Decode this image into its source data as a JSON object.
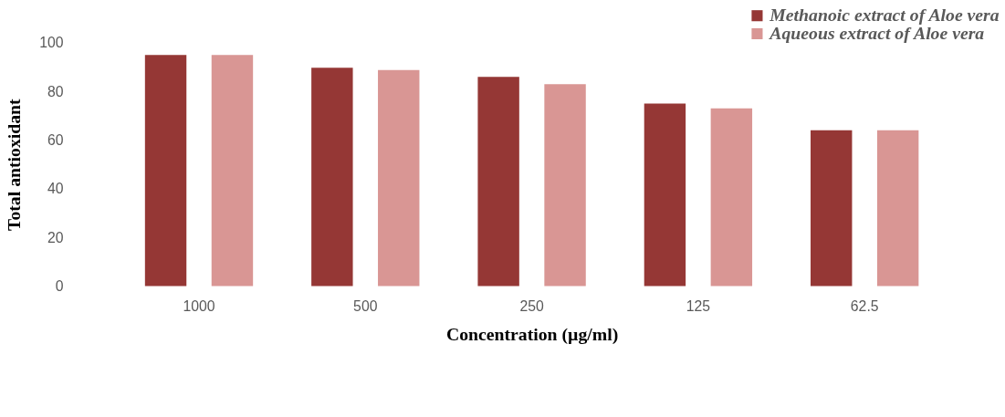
{
  "chart_data": {
    "type": "bar",
    "xlabel": "Concentration (µg/ml)",
    "ylabel": "Total antioxidant",
    "categories": [
      "1000",
      "500",
      "250",
      "125",
      "62.5"
    ],
    "series": [
      {
        "name": "Methanoic extract of Aloe vera",
        "color": "#953735",
        "values": [
          95,
          89.7,
          86,
          75,
          64
        ]
      },
      {
        "name": "Aqueous extract of Aloe vera",
        "color": "#d99694",
        "values": [
          95,
          88.8,
          83,
          73,
          64
        ]
      }
    ],
    "ylim": [
      0,
      100
    ],
    "yticks": [
      0,
      20,
      40,
      60,
      80,
      100
    ],
    "grid": false,
    "legend": "top right"
  }
}
